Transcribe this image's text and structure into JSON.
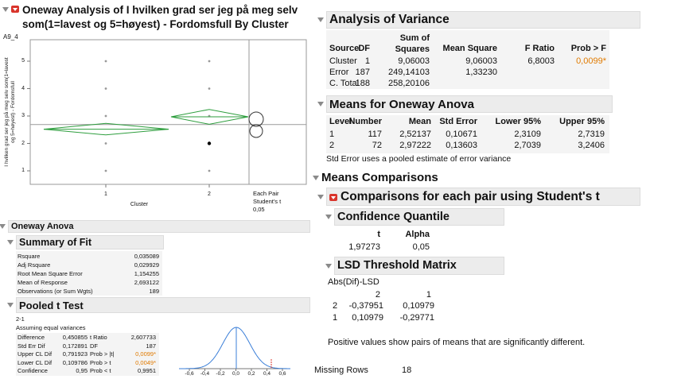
{
  "left": {
    "title": "Oneway Analysis of I hvilken grad ser jeg på meg selv som(1=lavest og 5=høyest) - Fordomsfull By Cluster",
    "var_label": "A9_4",
    "plot": {
      "y_label": [
        "I hvilken grad ser jeg på meg selv som(1=lavest",
        "og 5=høyest) - Fordomsfull"
      ],
      "yticks": [
        1,
        2,
        3,
        4,
        5
      ],
      "x_label": "Cluster",
      "categories": [
        "1",
        "2"
      ],
      "legend": [
        "Each Pair",
        "Student's t",
        "0,05"
      ]
    },
    "oneway_anova": "Oneway Anova",
    "summary_of_fit": {
      "title": "Summary of Fit",
      "rows": [
        [
          "Rsquare",
          "0,035089"
        ],
        [
          "Adj Rsquare",
          "0,029929"
        ],
        [
          "Root Mean Square Error",
          "1,154255"
        ],
        [
          "Mean of Response",
          "2,693122"
        ],
        [
          "Observations (or Sum Wgts)",
          "189"
        ]
      ]
    },
    "pooled_t": {
      "title": "Pooled t Test",
      "comparison": "2-1",
      "assumption": "Assuming equal variances",
      "rows": [
        [
          "Difference",
          "0,450855",
          "t Ratio",
          "2,607733"
        ],
        [
          "Std Err Dif",
          "0,172891",
          "DF",
          "187"
        ],
        [
          "Upper CL Dif",
          "0,791923",
          "Prob > |t|",
          "0,0099*"
        ],
        [
          "Lower CL Dif",
          "0,109786",
          "Prob > t",
          "0,0049*"
        ],
        [
          "Confidence",
          "0,95",
          "Prob < t",
          "0,9951"
        ]
      ],
      "axis": [
        "-0,6",
        "-0,4",
        "-0,2",
        "0,0",
        "0,2",
        "0,4",
        "0,6"
      ]
    }
  },
  "right": {
    "anova": {
      "title": "Analysis of Variance",
      "headers": [
        "Source",
        "DF",
        "Sum of Squares",
        "Mean Square",
        "F Ratio",
        "Prob > F"
      ],
      "rows": [
        [
          "Cluster",
          "1",
          "9,06003",
          "9,06003",
          "6,8003",
          "0,0099*"
        ],
        [
          "Error",
          "187",
          "249,14103",
          "1,33230"
        ],
        [
          "C. Total",
          "188",
          "258,20106"
        ]
      ]
    },
    "means": {
      "title": "Means for Oneway Anova",
      "headers": [
        "Level",
        "Number",
        "Mean",
        "Std Error",
        "Lower 95%",
        "Upper 95%"
      ],
      "rows": [
        [
          "1",
          "117",
          "2,52137",
          "0,10671",
          "2,3109",
          "2,7319"
        ],
        [
          "2",
          "72",
          "2,97222",
          "0,13603",
          "2,7039",
          "3,2406"
        ]
      ],
      "note": "Std Error uses a pooled estimate of error variance"
    },
    "means_comparisons": "Means Comparisons",
    "comparisons": "Comparisons for each pair using Student's t",
    "confidence_quantile": {
      "title": "Confidence Quantile",
      "headers": [
        "t",
        "Alpha"
      ],
      "values": [
        "1,97273",
        "0,05"
      ]
    },
    "lsd": {
      "title": "LSD Threshold Matrix",
      "subtitle": "Abs(Dif)-LSD",
      "headers": [
        "2",
        "1"
      ],
      "rows": [
        [
          "2",
          "-0,37951",
          "0,10979"
        ],
        [
          "1",
          "0,10979",
          "-0,29771"
        ]
      ],
      "note": "Positive values show pairs of means that are significantly different."
    },
    "missing": [
      "Missing Rows",
      "18"
    ]
  }
}
